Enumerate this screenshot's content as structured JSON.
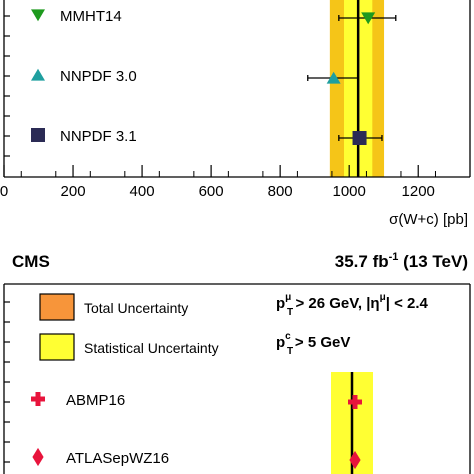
{
  "chart_data": [
    {
      "type": "scatter",
      "title": "",
      "xlabel": "σ(W+c) [pb]",
      "ylabel": "",
      "xlim": [
        0,
        1350
      ],
      "x_ticks": [
        "0",
        "200",
        "400",
        "600",
        "800",
        "1000",
        "1200"
      ],
      "measurement": {
        "value": 1026,
        "stat_band": [
          985,
          1067
        ],
        "total_band": [
          944,
          1101
        ]
      },
      "series": [
        {
          "name": "MMHT14",
          "marker": "triangle-down",
          "color": "#1e9a1e",
          "value": 1055,
          "err": [
            970,
            1135
          ]
        },
        {
          "name": "NNPDF 3.0",
          "marker": "triangle-up",
          "color": "#1f9f9f",
          "value": 955,
          "err": [
            880,
            1025
          ]
        },
        {
          "name": "NNPDF 3.1",
          "marker": "square",
          "color": "#2b2b55",
          "value": 1030,
          "err": [
            970,
            1095
          ]
        }
      ]
    },
    {
      "type": "scatter",
      "experiment": "CMS",
      "luminosity": "35.7 fb",
      "lumi_exponent": "-1",
      "energy": " (13 TeV)",
      "legend": [
        {
          "name": "Total Uncertainty",
          "color": "#f7953a"
        },
        {
          "name": "Statistical Uncertainty",
          "color": "#ffff33"
        }
      ],
      "cuts": [
        "p",
        "T",
        "μ",
        " > 26 GeV, |η",
        "μ",
        "| < 2.4",
        "c",
        " > 5 GeV"
      ],
      "series": [
        {
          "name": "ABMP16",
          "marker": "cross",
          "color": "#e8143c"
        },
        {
          "name": "ATLASepWZ16",
          "marker": "diamond",
          "color": "#e8143c"
        }
      ]
    }
  ],
  "colors": {
    "total": "#f5c518",
    "stat": "#ffff33",
    "total_legend": "#f7953a"
  }
}
